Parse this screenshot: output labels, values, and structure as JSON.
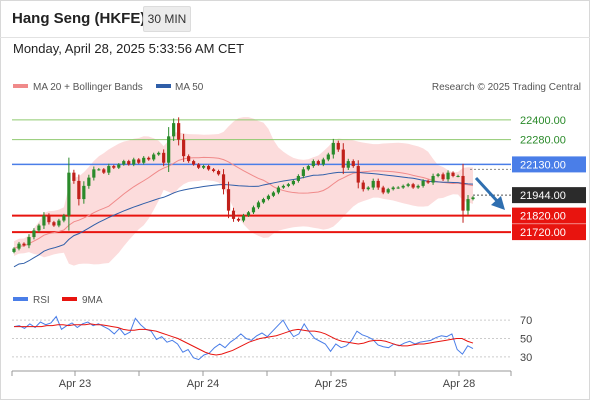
{
  "header": {
    "title": "Hang Seng (HKFE)",
    "interval": "30 MIN",
    "timestamp": "Monday, April 28, 2025 5:33:56 AM CET"
  },
  "legend": {
    "ma20_bb": "MA 20 + Bollinger Bands",
    "ma50": "MA 50",
    "credit": "Research © 2025 Trading Central",
    "rsi": "RSI",
    "rsi_ma": "9MA"
  },
  "colors": {
    "resistance_green": "#8fca6f",
    "pivot_blue": "#4a7ee8",
    "support_red": "#e8140f",
    "bollinger_fill": "#fbd6d6",
    "ma20": "#f08a8a",
    "ma50": "#2f5ea8",
    "candle_up": "#2a8a2a",
    "candle_down": "#c0201a",
    "rsi": "#4a7ee8",
    "rsi_ma": "#e8140f",
    "arrow": "#2f6fb0"
  },
  "chart_data": [
    {
      "type": "candlestick",
      "x": [
        "Apr 23",
        "Apr 24",
        "Apr 25",
        "Apr 28"
      ],
      "ylim": [
        21430,
        22520
      ],
      "levels": [
        {
          "value": 22400,
          "label": "22400.00",
          "kind": "resistance"
        },
        {
          "value": 22280,
          "label": "22280.00",
          "kind": "resistance"
        },
        {
          "value": 22130,
          "label": "22130.00",
          "kind": "pivot"
        },
        {
          "value": 21820,
          "label": "21820.00",
          "kind": "support"
        },
        {
          "value": 21720,
          "label": "21720.00",
          "kind": "support"
        }
      ],
      "last_price": {
        "value": 21944,
        "label": "21944.00"
      },
      "closes": [
        21620,
        21650,
        21640,
        21690,
        21730,
        21760,
        21820,
        21780,
        21760,
        21790,
        21820,
        22080,
        22030,
        21920,
        22000,
        22050,
        22100,
        22100,
        22080,
        22120,
        22110,
        22130,
        22150,
        22130,
        22160,
        22140,
        22170,
        22160,
        22190,
        22200,
        22140,
        22300,
        22380,
        22280,
        22180,
        22150,
        22130,
        22110,
        22120,
        22100,
        22090,
        22070,
        21980,
        21850,
        21800,
        21790,
        21820,
        21840,
        21870,
        21900,
        21920,
        21940,
        21960,
        21990,
        22000,
        22010,
        22030,
        22060,
        22100,
        22120,
        22150,
        22130,
        22160,
        22190,
        22260,
        22220,
        22110,
        22150,
        22120,
        22020,
        21980,
        21990,
        22030,
        21990,
        21960,
        21980,
        21990,
        21990,
        22000,
        22010,
        21990,
        22000,
        22030,
        22020,
        22060,
        22070,
        22040,
        22080,
        22060,
        22060,
        21850,
        21920,
        21930
      ],
      "rsi": {
        "ylim": [
          20,
          80
        ],
        "ticks": [
          70,
          50,
          30
        ],
        "values": [
          63,
          64,
          61,
          66,
          62,
          68,
          65,
          67,
          74,
          60,
          64,
          67,
          62,
          66,
          68,
          64,
          66,
          63,
          60,
          55,
          61,
          54,
          57,
          72,
          65,
          60,
          58,
          49,
          52,
          46,
          48,
          44,
          35,
          38,
          29,
          27,
          32,
          34,
          40,
          44,
          40,
          46,
          50,
          55,
          50,
          48,
          53,
          56,
          52,
          58,
          64,
          70,
          60,
          52,
          55,
          66,
          57,
          50,
          47,
          44,
          36,
          44,
          40,
          42,
          48,
          58,
          54,
          52,
          49,
          43,
          41,
          40,
          44,
          42,
          45,
          47,
          44,
          46,
          47,
          48,
          51,
          53,
          52,
          55,
          38,
          33,
          42,
          39
        ],
        "ma_values": [
          63,
          63,
          63,
          63,
          63,
          63,
          64,
          64,
          65,
          65,
          64,
          65,
          65,
          65,
          66,
          65,
          65,
          64,
          63,
          62,
          60,
          59,
          59,
          60,
          60,
          59,
          58,
          56,
          54,
          52,
          50,
          47,
          44,
          41,
          38,
          35,
          33,
          32,
          33,
          35,
          37,
          40,
          43,
          46,
          48,
          50,
          51,
          52,
          53,
          55,
          57,
          59,
          60,
          59,
          58,
          58,
          57,
          55,
          52,
          49,
          47,
          46,
          45,
          44,
          45,
          47,
          48,
          48,
          47,
          45,
          43,
          42,
          42,
          43,
          44,
          44,
          45,
          46,
          47,
          48,
          49,
          50,
          50,
          47,
          45
        ]
      }
    }
  ]
}
